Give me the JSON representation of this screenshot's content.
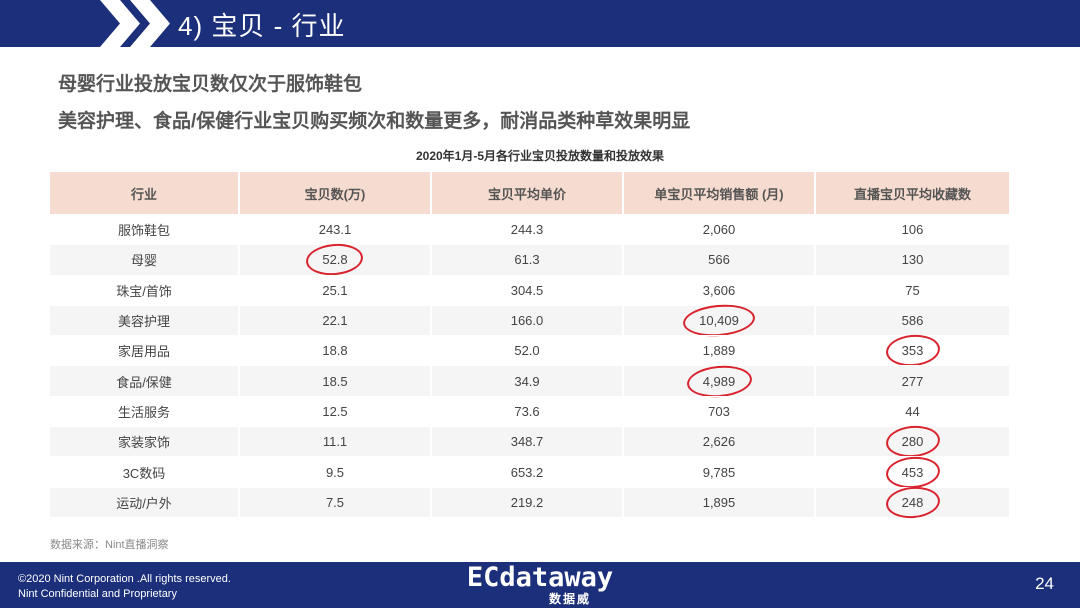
{
  "header": {
    "title": "4) 宝贝 - 行业"
  },
  "headlines": [
    "母婴行业投放宝贝数仅次于服饰鞋包",
    "美容护理、食品/保健行业宝贝购买频次和数量更多，耐消品类种草效果明显"
  ],
  "table": {
    "title": "2020年1月-5月各行业宝贝投放数量和投放效果",
    "columns": [
      "行业",
      "宝贝数(万)",
      "宝贝平均单价",
      "单宝贝平均销售额 (月)",
      "直播宝贝平均收藏数"
    ],
    "rows": [
      {
        "industry": "服饰鞋包",
        "count": "243.1",
        "avg_price": "244.3",
        "avg_sales": "2,060",
        "avg_favorites": "106"
      },
      {
        "industry": "母婴",
        "count": "52.8",
        "avg_price": "61.3",
        "avg_sales": "566",
        "avg_favorites": "130"
      },
      {
        "industry": "珠宝/首饰",
        "count": "25.1",
        "avg_price": "304.5",
        "avg_sales": "3,606",
        "avg_favorites": "75"
      },
      {
        "industry": "美容护理",
        "count": "22.1",
        "avg_price": "166.0",
        "avg_sales": "10,409",
        "avg_favorites": "586"
      },
      {
        "industry": "家居用品",
        "count": "18.8",
        "avg_price": "52.0",
        "avg_sales": "1,889",
        "avg_favorites": "353"
      },
      {
        "industry": "食品/保健",
        "count": "18.5",
        "avg_price": "34.9",
        "avg_sales": "4,989",
        "avg_favorites": "277"
      },
      {
        "industry": "生活服务",
        "count": "12.5",
        "avg_price": "73.6",
        "avg_sales": "703",
        "avg_favorites": "44"
      },
      {
        "industry": "家装家饰",
        "count": "11.1",
        "avg_price": "348.7",
        "avg_sales": "2,626",
        "avg_favorites": "280"
      },
      {
        "industry": "3C数码",
        "count": "9.5",
        "avg_price": "653.2",
        "avg_sales": "9,785",
        "avg_favorites": "453"
      },
      {
        "industry": "运动/户外",
        "count": "7.5",
        "avg_price": "219.2",
        "avg_sales": "1,895",
        "avg_favorites": "248"
      }
    ],
    "highlight_color": "#d9232e"
  },
  "source": "数据来源：Nint直播洞察",
  "footer": {
    "copyright_line1": "©2020 Nint Corporation .All rights reserved.",
    "copyright_line2": "Nint Confidential and Proprietary",
    "logo_text": "ECdataway",
    "logo_subtext": "数据威",
    "page_number": "24"
  },
  "colors": {
    "brand_navy": "#1b2f7a",
    "header_row": "#f6dcd0",
    "shaded_row": "#f5f5f5"
  }
}
